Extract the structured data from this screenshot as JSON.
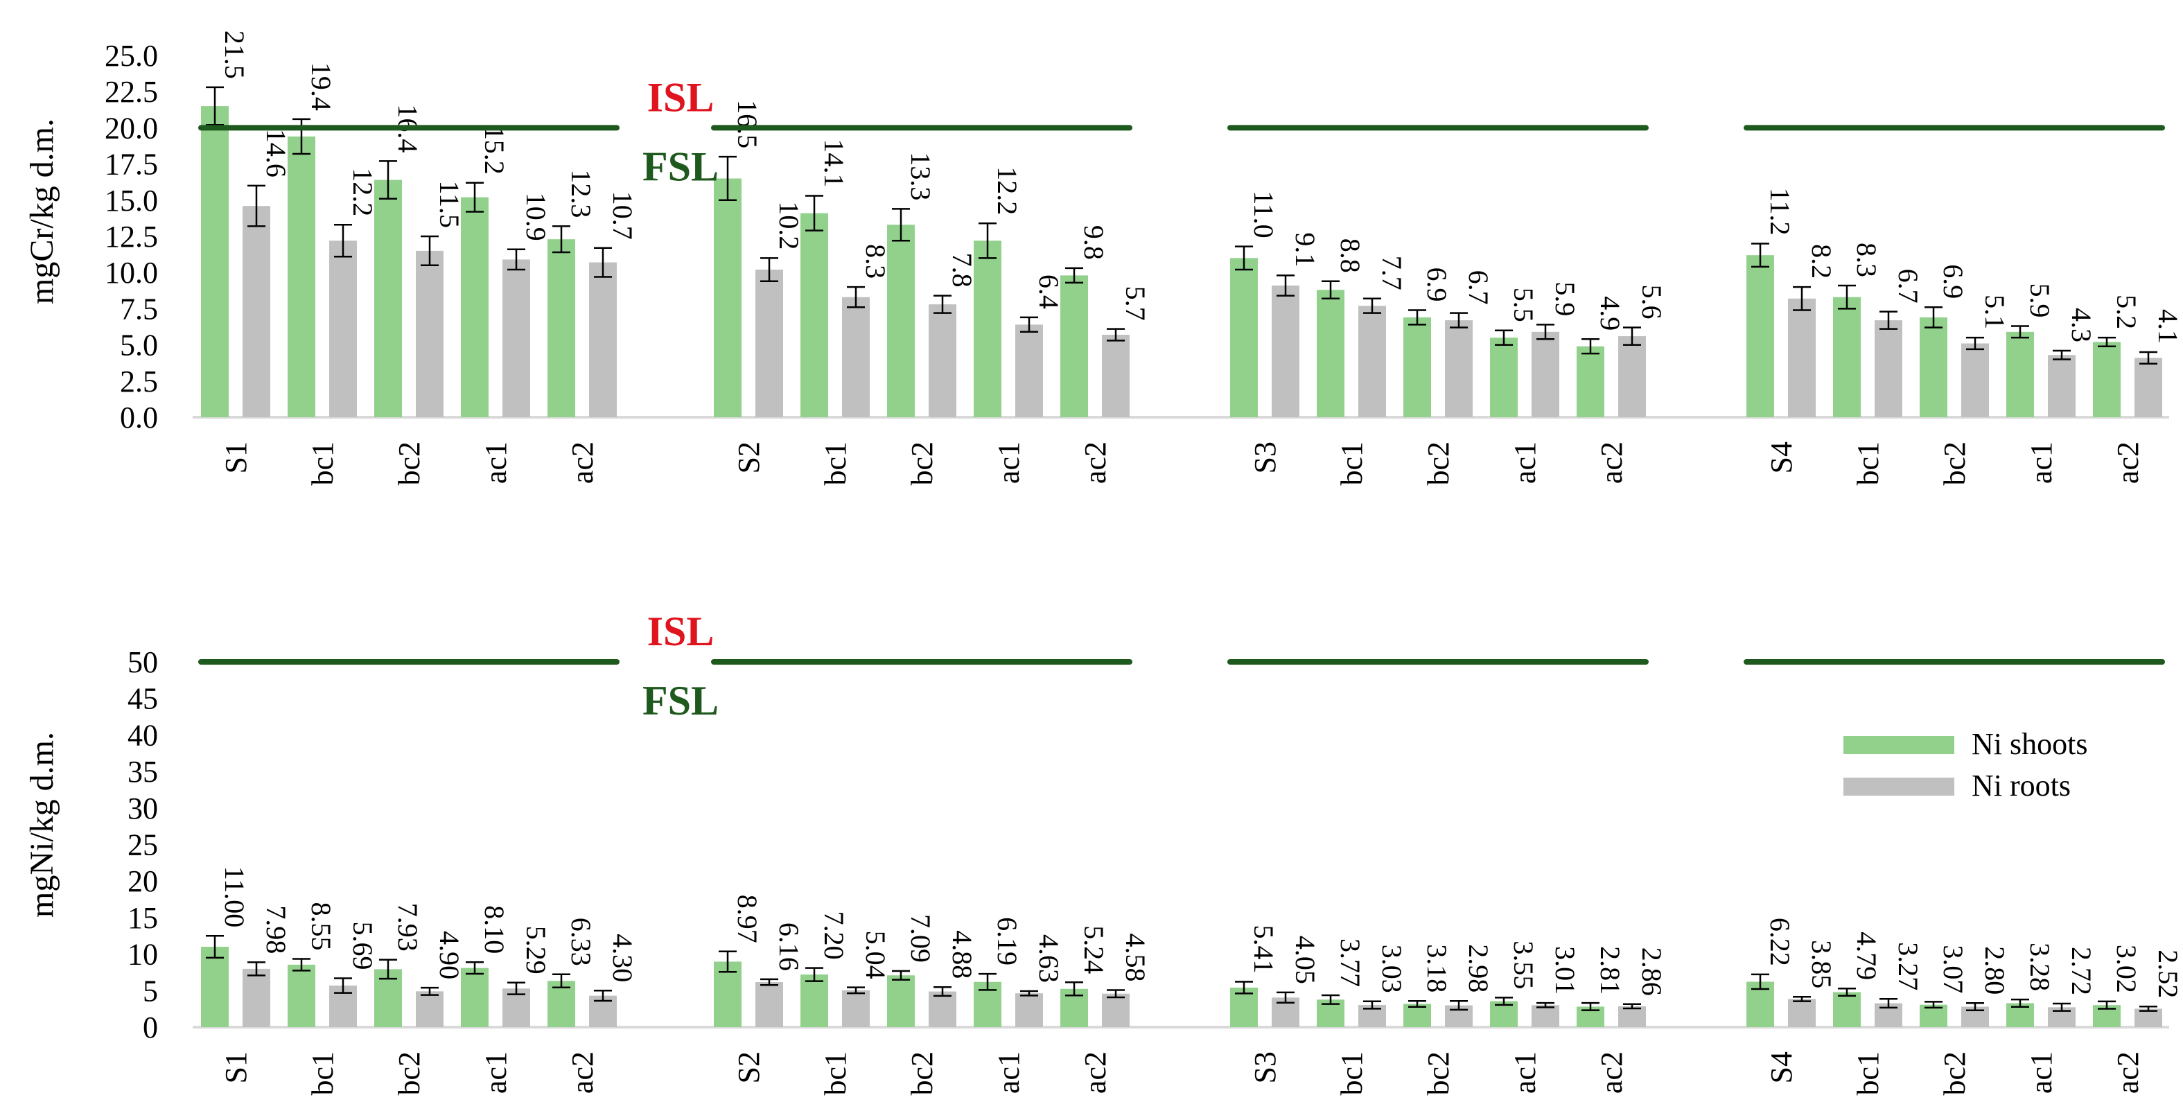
{
  "colors": {
    "shoots": "#92d18c",
    "roots": "#c0c0c0",
    "line": "#1e5a1e",
    "isl": "#e0141e",
    "fsl": "#1e5a1e",
    "axis": "#d9d9d9"
  },
  "chart_data": [
    {
      "type": "bar",
      "ylabel": "mgCr/kg d.m.",
      "ylim": [
        0,
        25
      ],
      "yticks": [
        "0.0",
        "2.5",
        "5.0",
        "7.5",
        "10.0",
        "12.5",
        "15.0",
        "17.5",
        "20.0",
        "22.5",
        "25.0"
      ],
      "groups": [
        {
          "categories": [
            "S1",
            "bc1",
            "bc2",
            "ac1",
            "ac2"
          ],
          "shoots": [
            21.5,
            19.4,
            16.4,
            15.2,
            12.3
          ],
          "roots": [
            14.6,
            12.2,
            11.5,
            10.9,
            10.7
          ],
          "shoots_labels": [
            "21.5",
            "19.4",
            "16.4",
            "15.2",
            "12.3"
          ],
          "roots_labels": [
            "14.6",
            "12.2",
            "11.5",
            "10.9",
            "10.7"
          ],
          "shoots_err": [
            1.3,
            1.2,
            1.3,
            1.0,
            0.9
          ],
          "roots_err": [
            1.4,
            1.1,
            1.0,
            0.7,
            1.0
          ]
        },
        {
          "categories": [
            "S2",
            "bc1",
            "bc2",
            "ac1",
            "ac2"
          ],
          "shoots": [
            16.5,
            14.1,
            13.3,
            12.2,
            9.8
          ],
          "roots": [
            10.2,
            8.3,
            7.8,
            6.4,
            5.7
          ],
          "shoots_labels": [
            "16.5",
            "14.1",
            "13.3",
            "12.2",
            "9.8"
          ],
          "roots_labels": [
            "10.2",
            "8.3",
            "7.8",
            "6.4",
            "5.7"
          ],
          "shoots_err": [
            1.5,
            1.2,
            1.1,
            1.2,
            0.5
          ],
          "roots_err": [
            0.8,
            0.7,
            0.6,
            0.5,
            0.4
          ]
        },
        {
          "categories": [
            "S3",
            "bc1",
            "bc2",
            "ac1",
            "ac2"
          ],
          "shoots": [
            11.0,
            8.8,
            6.9,
            5.5,
            4.9
          ],
          "roots": [
            9.1,
            7.7,
            6.7,
            5.9,
            5.6
          ],
          "shoots_labels": [
            "11.0",
            "8.8",
            "6.9",
            "5.5",
            "4.9"
          ],
          "roots_labels": [
            "9.1",
            "7.7",
            "6.7",
            "5.9",
            "5.6"
          ],
          "shoots_err": [
            0.8,
            0.6,
            0.5,
            0.5,
            0.5
          ],
          "roots_err": [
            0.7,
            0.5,
            0.5,
            0.5,
            0.6
          ]
        },
        {
          "categories": [
            "S4",
            "bc1",
            "bc2",
            "ac1",
            "ac2"
          ],
          "shoots": [
            11.2,
            8.3,
            6.9,
            5.9,
            5.2
          ],
          "roots": [
            8.2,
            6.7,
            5.1,
            4.3,
            4.1
          ],
          "shoots_labels": [
            "11.2",
            "8.3",
            "6.9",
            "5.9",
            "5.2"
          ],
          "roots_labels": [
            "8.2",
            "6.7",
            "5.1",
            "4.3",
            "4.1"
          ],
          "shoots_err": [
            0.8,
            0.8,
            0.7,
            0.4,
            0.3
          ],
          "roots_err": [
            0.8,
            0.6,
            0.4,
            0.3,
            0.4
          ]
        }
      ],
      "isl_label": "ISL",
      "fsl_label": "FSL",
      "threshold_value": 20
    },
    {
      "type": "bar",
      "ylabel": "mgNi/kg d.m.",
      "ylim": [
        0,
        50
      ],
      "yticks": [
        "0",
        "5",
        "10",
        "15",
        "20",
        "25",
        "30",
        "35",
        "40",
        "45",
        "50"
      ],
      "groups": [
        {
          "categories": [
            "S1",
            "bc1",
            "bc2",
            "ac1",
            "ac2"
          ],
          "shoots": [
            11.0,
            8.55,
            7.93,
            8.1,
            6.33
          ],
          "roots": [
            7.98,
            5.69,
            4.9,
            5.29,
            4.3
          ],
          "shoots_labels": [
            "11.00",
            "8.55",
            "7.93",
            "8.10",
            "6.33"
          ],
          "roots_labels": [
            "7.98",
            "5.69",
            "4.90",
            "5.29",
            "4.30"
          ],
          "shoots_err": [
            1.5,
            0.8,
            1.3,
            0.8,
            0.9
          ],
          "roots_err": [
            0.9,
            1.0,
            0.5,
            0.8,
            0.7
          ]
        },
        {
          "categories": [
            "S2",
            "bc1",
            "bc2",
            "ac1",
            "ac2"
          ],
          "shoots": [
            8.97,
            7.2,
            7.09,
            6.19,
            5.24
          ],
          "roots": [
            6.16,
            5.04,
            4.88,
            4.63,
            4.58
          ],
          "shoots_labels": [
            "8.97",
            "7.20",
            "7.09",
            "6.19",
            "5.24"
          ],
          "roots_labels": [
            "6.16",
            "5.04",
            "4.88",
            "4.63",
            "4.58"
          ],
          "shoots_err": [
            1.4,
            0.9,
            0.6,
            1.1,
            0.9
          ],
          "roots_err": [
            0.4,
            0.4,
            0.6,
            0.3,
            0.5
          ]
        },
        {
          "categories": [
            "S3",
            "bc1",
            "bc2",
            "ac1",
            "ac2"
          ],
          "shoots": [
            5.41,
            3.77,
            3.18,
            3.55,
            2.81
          ],
          "roots": [
            4.05,
            3.03,
            2.98,
            3.01,
            2.86
          ],
          "shoots_labels": [
            "5.41",
            "3.77",
            "3.18",
            "3.55",
            "2.81"
          ],
          "roots_labels": [
            "4.05",
            "3.03",
            "2.98",
            "3.01",
            "2.86"
          ],
          "shoots_err": [
            0.8,
            0.6,
            0.4,
            0.5,
            0.5
          ],
          "roots_err": [
            0.7,
            0.5,
            0.6,
            0.3,
            0.3
          ]
        },
        {
          "categories": [
            "S4",
            "bc1",
            "bc2",
            "ac1",
            "ac2"
          ],
          "shoots": [
            6.22,
            4.79,
            3.07,
            3.28,
            3.02
          ],
          "roots": [
            3.85,
            3.27,
            2.8,
            2.72,
            2.52
          ],
          "shoots_labels": [
            "6.22",
            "4.79",
            "3.07",
            "3.28",
            "3.02"
          ],
          "roots_labels": [
            "3.85",
            "3.27",
            "2.80",
            "2.72",
            "2.52"
          ],
          "shoots_err": [
            1.0,
            0.5,
            0.4,
            0.5,
            0.5
          ],
          "roots_err": [
            0.3,
            0.6,
            0.5,
            0.5,
            0.3
          ]
        }
      ],
      "isl_label": "ISL",
      "fsl_label": "FSL",
      "threshold_value": 50,
      "legend": {
        "position": "right",
        "shoots": "Ni shoots",
        "roots": "Ni roots"
      }
    }
  ]
}
